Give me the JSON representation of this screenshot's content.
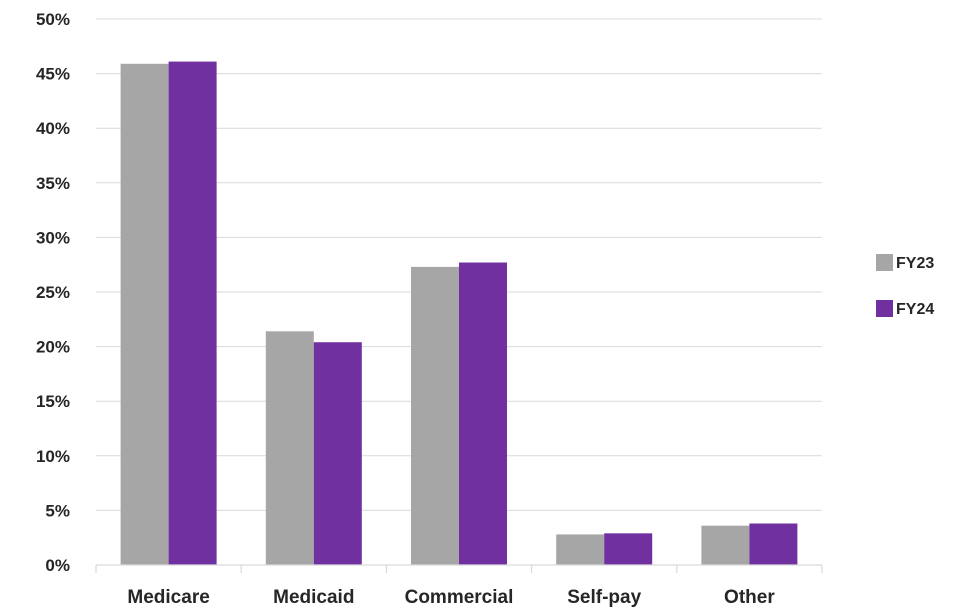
{
  "chart_data": {
    "type": "bar",
    "title": "",
    "xlabel": "",
    "ylabel": "",
    "categories": [
      "Medicare",
      "Medicaid",
      "Commercial",
      "Self-pay",
      "Other"
    ],
    "series": [
      {
        "name": "FY23",
        "color": "#a6a6a6",
        "values": [
          45.9,
          21.4,
          27.3,
          2.8,
          3.6
        ]
      },
      {
        "name": "FY24",
        "color": "#7030a0",
        "values": [
          46.1,
          20.4,
          27.7,
          2.9,
          3.8
        ]
      }
    ],
    "ylim": [
      0,
      50
    ],
    "yticks": [
      "0%",
      "5%",
      "10%",
      "15%",
      "20%",
      "25%",
      "30%",
      "35%",
      "40%",
      "45%",
      "50%"
    ],
    "grid": true,
    "legend_position": "right"
  }
}
